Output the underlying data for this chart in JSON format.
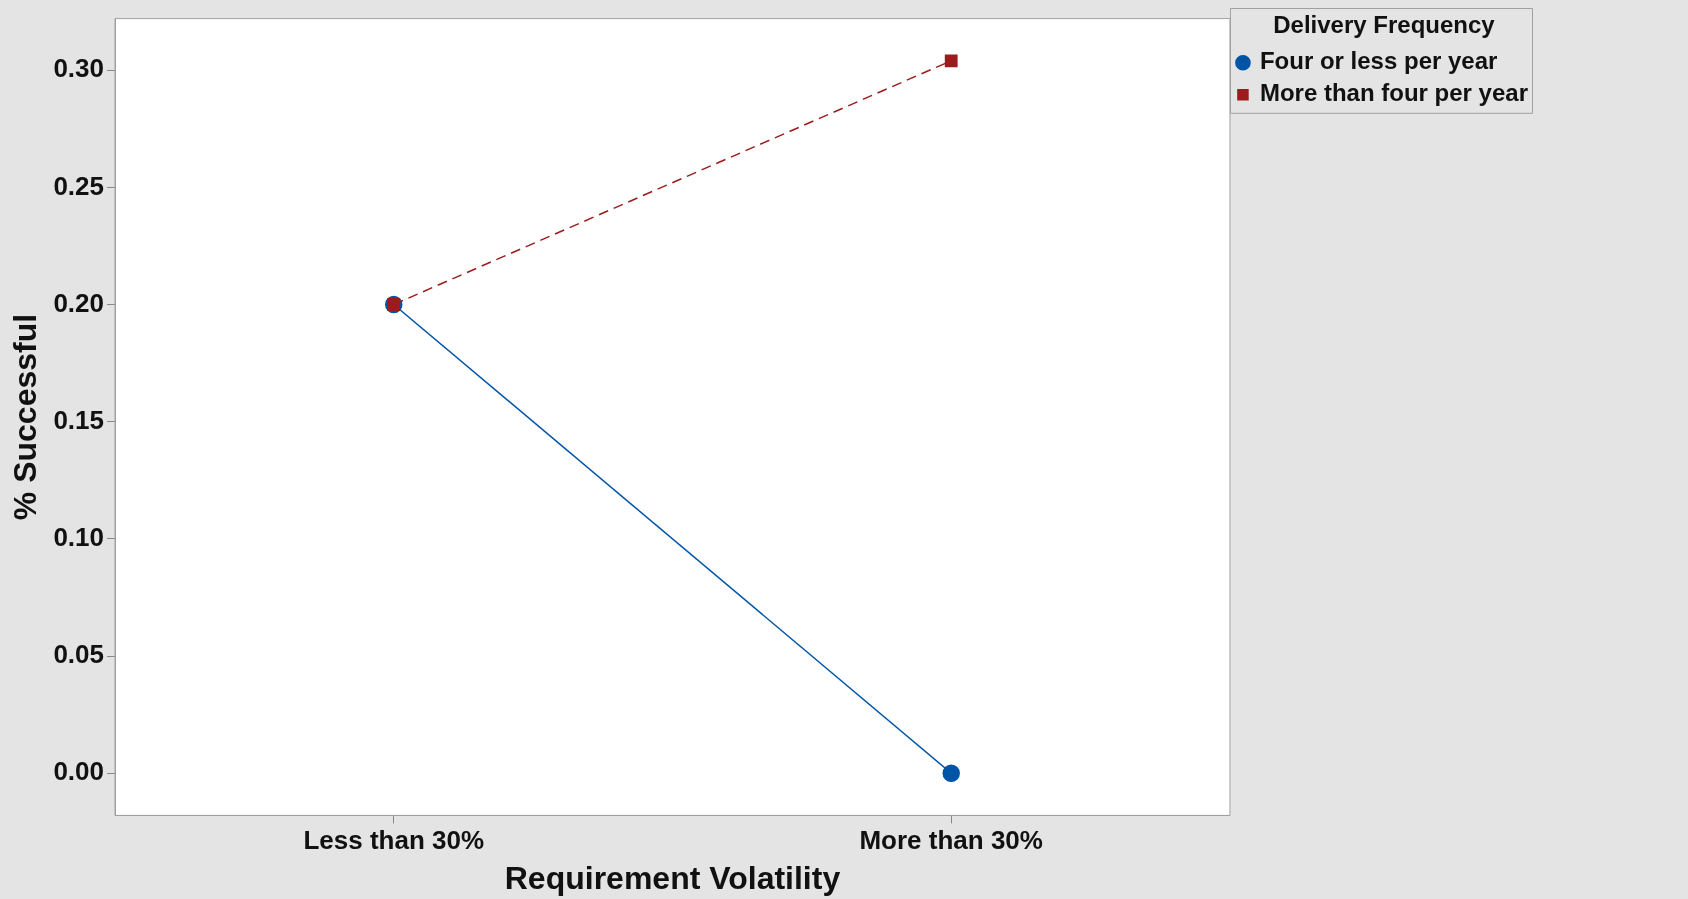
{
  "chart_data": {
    "type": "line",
    "xlabel": "Requirement Volatility",
    "ylabel": "% Successful",
    "legend_title": "Delivery Frequency",
    "categories": [
      "Less than 30%",
      "More than 30%"
    ],
    "series": [
      {
        "name": "Four or less per year",
        "color": "#0054a6",
        "values": [
          0.2,
          0.0
        ],
        "marker": "circle",
        "line_style": "solid"
      },
      {
        "name": "More than four per year",
        "color": "#9b1c1c",
        "values": [
          0.2,
          0.304
        ],
        "marker": "square",
        "line_style": "dashed"
      }
    ],
    "ylim": [
      -0.018,
      0.322
    ],
    "yticks": [
      {
        "value": 0,
        "label": "0.00"
      },
      {
        "value": 0.05,
        "label": "0.05"
      },
      {
        "value": 0.1,
        "label": "0.10"
      },
      {
        "value": 0.15,
        "label": "0.15"
      },
      {
        "value": 0.2,
        "label": "0.20"
      },
      {
        "value": 0.25,
        "label": "0.25"
      },
      {
        "value": 0.3,
        "label": "0.30"
      }
    ],
    "grid": false,
    "legend": "top right"
  }
}
